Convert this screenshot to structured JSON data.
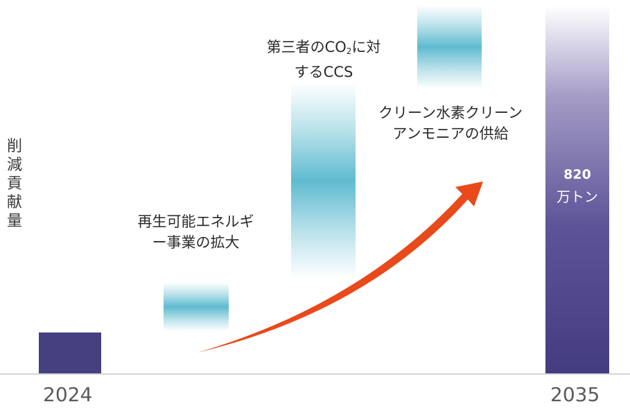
{
  "chart_data": {
    "type": "bar",
    "ylabel": "削減貢献量",
    "categories": [
      "2024",
      "2035"
    ],
    "bars": [
      {
        "category": "2024",
        "label": ""
      },
      {
        "category": "2035",
        "value_label": "820",
        "unit_label": "万トン"
      }
    ],
    "contributions": [
      {
        "label": "再生可能エネルギー事業の拡大"
      },
      {
        "label_prefix": "第三者のCO",
        "label_sub": "2",
        "label_suffix": "に対するCCS"
      },
      {
        "label": "クリーン水素クリーンアンモニアの供給"
      }
    ],
    "colors": {
      "bar": "#463f80",
      "band": "#5fbbd0",
      "arrow": "#e84a1b",
      "baseline": "#d4d4d4"
    }
  }
}
